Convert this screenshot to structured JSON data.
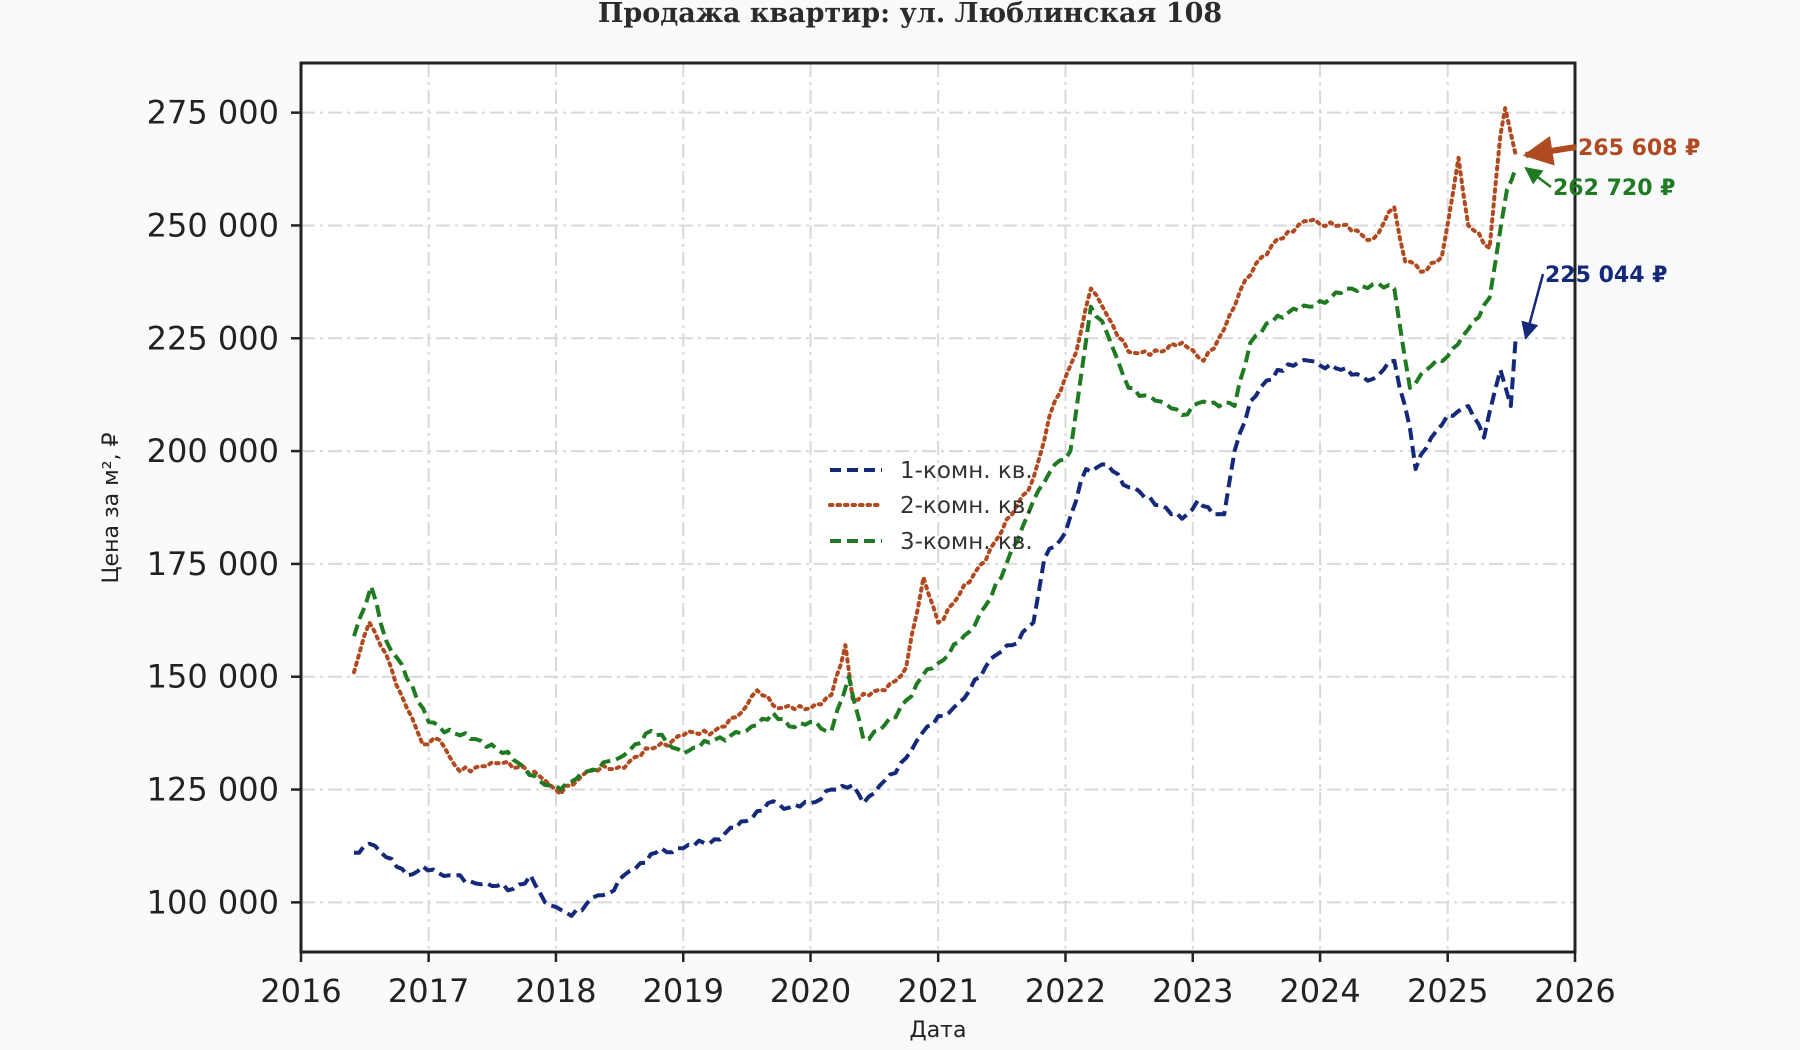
{
  "chart_data": {
    "type": "line",
    "title": "Продажа квартир: ул. Люблинская 108",
    "xlabel": "Дата",
    "ylabel": "Цена за м², ₽",
    "xlim": [
      "2016-01-01",
      "2026-01-01"
    ],
    "ylim": [
      89000,
      286000
    ],
    "x_ticks": [
      "2016",
      "2017",
      "2018",
      "2019",
      "2020",
      "2021",
      "2022",
      "2023",
      "2024",
      "2025",
      "2026"
    ],
    "y_ticks": [
      {
        "value": 100000,
        "label": "100 000"
      },
      {
        "value": 125000,
        "label": "125 000"
      },
      {
        "value": 150000,
        "label": "150 000"
      },
      {
        "value": 175000,
        "label": "175 000"
      },
      {
        "value": 200000,
        "label": "200 000"
      },
      {
        "value": 225000,
        "label": "225 000"
      },
      {
        "value": 250000,
        "label": "250 000"
      },
      {
        "value": 275000,
        "label": "275 000"
      }
    ],
    "grid": true,
    "legend_position": "center",
    "series": [
      {
        "name": "1-комн. кв.",
        "color": "#15297a",
        "style": "dashed",
        "points": [
          [
            "2016-06-01",
            111000
          ],
          [
            "2016-07-15",
            113000
          ],
          [
            "2016-09-01",
            110000
          ],
          [
            "2016-11-01",
            106000
          ],
          [
            "2016-12-15",
            108000
          ],
          [
            "2017-03-01",
            106000
          ],
          [
            "2017-06-01",
            104000
          ],
          [
            "2017-09-01",
            103000
          ],
          [
            "2017-10-20",
            106000
          ],
          [
            "2017-12-01",
            100000
          ],
          [
            "2018-01-01",
            99000
          ],
          [
            "2018-02-15",
            97000
          ],
          [
            "2018-04-15",
            101000
          ],
          [
            "2018-06-01",
            102000
          ],
          [
            "2018-08-01",
            107000
          ],
          [
            "2018-10-15",
            111000
          ],
          [
            "2019-01-01",
            112000
          ],
          [
            "2019-04-01",
            114000
          ],
          [
            "2019-07-01",
            118000
          ],
          [
            "2019-09-01",
            122000
          ],
          [
            "2019-11-01",
            121000
          ],
          [
            "2020-01-01",
            122000
          ],
          [
            "2020-03-01",
            125000
          ],
          [
            "2020-05-01",
            126000
          ],
          [
            "2020-06-01",
            122000
          ],
          [
            "2020-08-01",
            127000
          ],
          [
            "2020-10-01",
            132000
          ],
          [
            "2020-12-01",
            139000
          ],
          [
            "2021-02-01",
            142000
          ],
          [
            "2021-04-01",
            147000
          ],
          [
            "2021-06-01",
            154000
          ],
          [
            "2021-08-01",
            157000
          ],
          [
            "2021-10-01",
            162000
          ],
          [
            "2021-11-01",
            176000
          ],
          [
            "2022-01-01",
            182000
          ],
          [
            "2022-03-01",
            196000
          ],
          [
            "2022-05-01",
            197000
          ],
          [
            "2022-07-01",
            192000
          ],
          [
            "2022-10-01",
            188000
          ],
          [
            "2022-12-01",
            185000
          ],
          [
            "2023-01-15",
            189000
          ],
          [
            "2023-03-01",
            186000
          ],
          [
            "2023-04-01",
            186000
          ],
          [
            "2023-05-01",
            200000
          ],
          [
            "2023-06-15",
            211000
          ],
          [
            "2023-09-01",
            218000
          ],
          [
            "2023-12-01",
            220000
          ],
          [
            "2024-03-01",
            218000
          ],
          [
            "2024-06-01",
            216000
          ],
          [
            "2024-08-01",
            220000
          ],
          [
            "2024-09-15",
            205000
          ],
          [
            "2024-10-01",
            196000
          ],
          [
            "2024-11-15",
            203000
          ],
          [
            "2025-01-01",
            208000
          ],
          [
            "2025-03-01",
            210000
          ],
          [
            "2025-04-15",
            203000
          ],
          [
            "2025-06-01",
            218000
          ],
          [
            "2025-07-01",
            210000
          ],
          [
            "2025-07-15",
            225044
          ]
        ]
      },
      {
        "name": "2-комн. кв.",
        "color": "#b04a20",
        "style": "dotted",
        "points": [
          [
            "2016-06-01",
            151000
          ],
          [
            "2016-07-15",
            162000
          ],
          [
            "2016-09-01",
            155000
          ],
          [
            "2016-10-15",
            146000
          ],
          [
            "2016-12-15",
            135000
          ],
          [
            "2017-02-01",
            136000
          ],
          [
            "2017-04-01",
            129000
          ],
          [
            "2017-07-01",
            131000
          ],
          [
            "2017-10-01",
            130000
          ],
          [
            "2017-12-01",
            127000
          ],
          [
            "2018-01-15",
            124000
          ],
          [
            "2018-04-01",
            129000
          ],
          [
            "2018-07-01",
            130000
          ],
          [
            "2018-10-01",
            134000
          ],
          [
            "2019-01-01",
            137000
          ],
          [
            "2019-04-01",
            138000
          ],
          [
            "2019-06-01",
            141000
          ],
          [
            "2019-08-01",
            147000
          ],
          [
            "2019-10-01",
            143000
          ],
          [
            "2020-01-01",
            143000
          ],
          [
            "2020-03-01",
            146000
          ],
          [
            "2020-04-10",
            157000
          ],
          [
            "2020-05-01",
            145000
          ],
          [
            "2020-08-01",
            147000
          ],
          [
            "2020-10-01",
            152000
          ],
          [
            "2020-11-20",
            172000
          ],
          [
            "2021-01-01",
            162000
          ],
          [
            "2021-04-01",
            171000
          ],
          [
            "2021-07-01",
            182000
          ],
          [
            "2021-10-01",
            194000
          ],
          [
            "2021-12-01",
            211000
          ],
          [
            "2022-02-01",
            222000
          ],
          [
            "2022-03-15",
            236000
          ],
          [
            "2022-05-01",
            230000
          ],
          [
            "2022-07-01",
            222000
          ],
          [
            "2022-10-01",
            222000
          ],
          [
            "2022-12-01",
            224000
          ],
          [
            "2023-02-01",
            220000
          ],
          [
            "2023-04-01",
            227000
          ],
          [
            "2023-06-01",
            238000
          ],
          [
            "2023-09-01",
            247000
          ],
          [
            "2023-12-01",
            251000
          ],
          [
            "2024-03-01",
            250000
          ],
          [
            "2024-06-01",
            247000
          ],
          [
            "2024-08-01",
            254000
          ],
          [
            "2024-09-01",
            242000
          ],
          [
            "2024-11-01",
            240000
          ],
          [
            "2024-12-15",
            243000
          ],
          [
            "2025-02-01",
            265000
          ],
          [
            "2025-03-01",
            250000
          ],
          [
            "2025-05-01",
            245000
          ],
          [
            "2025-06-01",
            270000
          ],
          [
            "2025-06-15",
            276000
          ],
          [
            "2025-07-15",
            265608
          ]
        ]
      },
      {
        "name": "3-комн. кв.",
        "color": "#1f7a22",
        "style": "dashed",
        "points": [
          [
            "2016-06-01",
            159000
          ],
          [
            "2016-07-20",
            170000
          ],
          [
            "2016-09-01",
            158000
          ],
          [
            "2016-11-15",
            148000
          ],
          [
            "2017-01-01",
            140000
          ],
          [
            "2017-04-01",
            137000
          ],
          [
            "2017-07-01",
            135000
          ],
          [
            "2017-10-01",
            130000
          ],
          [
            "2017-12-01",
            126000
          ],
          [
            "2018-01-15",
            125000
          ],
          [
            "2018-04-01",
            129000
          ],
          [
            "2018-07-01",
            132000
          ],
          [
            "2018-10-01",
            138000
          ],
          [
            "2019-01-01",
            133000
          ],
          [
            "2019-04-01",
            136000
          ],
          [
            "2019-07-01",
            138000
          ],
          [
            "2019-09-15",
            142000
          ],
          [
            "2019-11-01",
            139000
          ],
          [
            "2020-01-01",
            140000
          ],
          [
            "2020-03-01",
            138000
          ],
          [
            "2020-04-20",
            150000
          ],
          [
            "2020-06-01",
            136000
          ],
          [
            "2020-09-01",
            141000
          ],
          [
            "2020-11-15",
            150000
          ],
          [
            "2021-01-01",
            153000
          ],
          [
            "2021-04-01",
            160000
          ],
          [
            "2021-07-01",
            172000
          ],
          [
            "2021-10-01",
            189000
          ],
          [
            "2021-12-01",
            197000
          ],
          [
            "2022-01-15",
            200000
          ],
          [
            "2022-03-15",
            232000
          ],
          [
            "2022-05-01",
            226000
          ],
          [
            "2022-07-01",
            214000
          ],
          [
            "2022-10-01",
            211000
          ],
          [
            "2022-12-01",
            208000
          ],
          [
            "2023-02-01",
            211000
          ],
          [
            "2023-05-01",
            210000
          ],
          [
            "2023-06-15",
            224000
          ],
          [
            "2023-09-01",
            230000
          ],
          [
            "2023-12-01",
            232000
          ],
          [
            "2024-03-01",
            235000
          ],
          [
            "2024-06-01",
            237000
          ],
          [
            "2024-08-01",
            236000
          ],
          [
            "2024-09-15",
            214000
          ],
          [
            "2024-11-01",
            218000
          ],
          [
            "2025-01-01",
            221000
          ],
          [
            "2025-03-01",
            227000
          ],
          [
            "2025-05-01",
            234000
          ],
          [
            "2025-06-20",
            258000
          ],
          [
            "2025-07-15",
            262720
          ]
        ]
      }
    ],
    "annotations": [
      {
        "series": 1,
        "text": "265 608 ₽",
        "color": "#b04a20"
      },
      {
        "series": 2,
        "text": "262 720 ₽",
        "color": "#1f7a22"
      },
      {
        "series": 0,
        "text": "225 044 ₽",
        "color": "#15297a"
      }
    ]
  }
}
